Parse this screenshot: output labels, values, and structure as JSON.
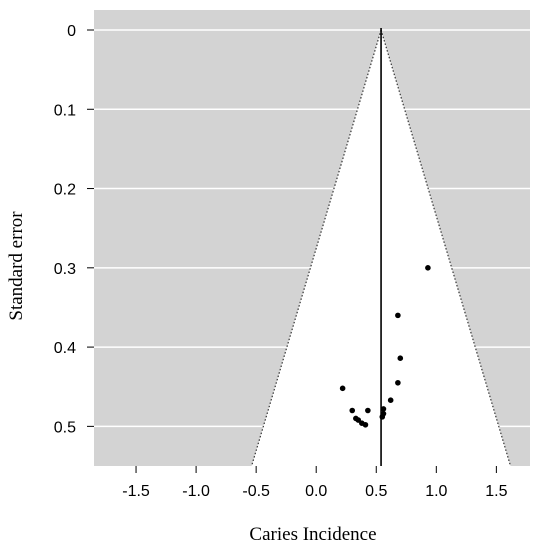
{
  "chart_data": {
    "type": "scatter",
    "subtype": "funnel plot",
    "xlabel": "Caries Incidence",
    "ylabel": "Standard error",
    "xlim": [
      -1.85,
      1.78
    ],
    "ylim": [
      0,
      0.55
    ],
    "y_reversed": true,
    "x_ticks": [
      "-1.5",
      "-1.0",
      "-0.5",
      "0.0",
      "0.5",
      "1.0",
      "1.5"
    ],
    "x_tick_values": [
      -1.5,
      -1.0,
      -0.5,
      0.0,
      0.5,
      1.0,
      1.5
    ],
    "y_ticks": [
      "0",
      "0.1",
      "0.2",
      "0.3",
      "0.4",
      "0.5"
    ],
    "y_tick_values": [
      0,
      0.1,
      0.2,
      0.3,
      0.4,
      0.5
    ],
    "grid": "horizontal",
    "pooled_estimate": 0.54,
    "funnel_z": 1.96,
    "colors": {
      "outside_funnel": "#d3d3d3",
      "inside_funnel": "#ffffff",
      "gridline": "#ffffff",
      "points": "#000000",
      "lines": "#000000"
    },
    "points": [
      {
        "x": 0.93,
        "y": 0.3
      },
      {
        "x": 0.68,
        "y": 0.36
      },
      {
        "x": 0.7,
        "y": 0.414
      },
      {
        "x": 0.68,
        "y": 0.445
      },
      {
        "x": 0.22,
        "y": 0.452
      },
      {
        "x": 0.62,
        "y": 0.467
      },
      {
        "x": 0.56,
        "y": 0.478
      },
      {
        "x": 0.3,
        "y": 0.48
      },
      {
        "x": 0.43,
        "y": 0.48
      },
      {
        "x": 0.56,
        "y": 0.484
      },
      {
        "x": 0.55,
        "y": 0.488
      },
      {
        "x": 0.33,
        "y": 0.49
      },
      {
        "x": 0.35,
        "y": 0.492
      },
      {
        "x": 0.38,
        "y": 0.496
      },
      {
        "x": 0.41,
        "y": 0.498
      }
    ]
  }
}
